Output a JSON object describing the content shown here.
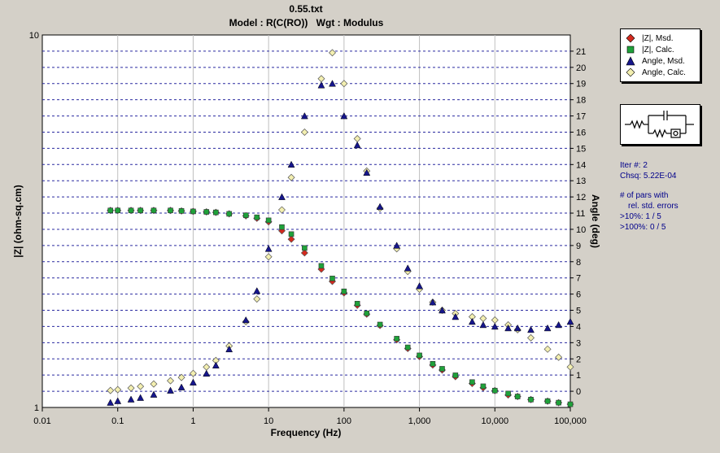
{
  "header": {
    "title": "0.55.txt",
    "model_label": "Model : R(C(RO))",
    "weight_label": "Wgt : Modulus"
  },
  "legend": [
    {
      "label": "|Z|, Msd.",
      "marker": "diamond",
      "color": "#d42a1e"
    },
    {
      "label": "|Z|, Calc.",
      "marker": "square",
      "color": "#1fa23a"
    },
    {
      "label": "Angle, Msd.",
      "marker": "triangle",
      "color": "#16168c"
    },
    {
      "label": "Angle, Calc.",
      "marker": "diamond",
      "color": "#f3efb0"
    }
  ],
  "circuit_icon": "R-C-parallel-R-O-circuit-icon",
  "fit_info": {
    "iter": "Iter #:  2",
    "chisq": "Chsq:  5.22E-04",
    "pars_header_1": "# of pars with",
    "pars_header_2": "rel. std. errors",
    "gt10": ">10%:      1 / 5",
    "gt100": ">100%:    0 / 5"
  },
  "chart_data": {
    "type": "scatter",
    "xlabel": "Frequency (Hz)",
    "ylabel_left": "|Z| (ohm-sq.cm)",
    "ylabel_right": "Angle (deg)",
    "x_scale": "log",
    "y_left_scale": "log",
    "xlim": [
      0.01,
      100000
    ],
    "ylim_left": [
      1,
      10
    ],
    "ylim_right": [
      -1,
      22
    ],
    "x_ticks": [
      "0.01",
      "0.1",
      "1",
      "10",
      "100",
      "1,000",
      "10,000",
      "100,000"
    ],
    "y_left_ticks": [
      "1",
      "10"
    ],
    "y_right_ticks": [
      "0",
      "1",
      "2",
      "3",
      "4",
      "5",
      "6",
      "7",
      "8",
      "9",
      "10",
      "11",
      "12",
      "13",
      "14",
      "15",
      "16",
      "17",
      "18",
      "19",
      "20",
      "21"
    ],
    "grid": true,
    "legend_position": "right",
    "series": [
      {
        "name": "|Z|, Msd.",
        "x": [
          0.08,
          0.1,
          0.15,
          0.2,
          0.3,
          0.5,
          0.7,
          1,
          1.5,
          2,
          3,
          5,
          7,
          10,
          15,
          20,
          30,
          50,
          70,
          100,
          150,
          200,
          300,
          500,
          700,
          1000,
          1500,
          2000,
          3000,
          5000,
          7000,
          10000,
          15000,
          20000,
          30000,
          50000,
          70000,
          100000
        ],
        "y": [
          3.38,
          3.38,
          3.38,
          3.38,
          3.38,
          3.38,
          3.37,
          3.36,
          3.35,
          3.34,
          3.31,
          3.27,
          3.22,
          3.15,
          2.98,
          2.83,
          2.6,
          2.35,
          2.18,
          2.03,
          1.88,
          1.78,
          1.66,
          1.52,
          1.44,
          1.37,
          1.3,
          1.26,
          1.21,
          1.16,
          1.13,
          1.11,
          1.08,
          1.07,
          1.05,
          1.04,
          1.03,
          1.02
        ]
      },
      {
        "name": "|Z|, Calc.",
        "x": [
          0.08,
          0.1,
          0.15,
          0.2,
          0.3,
          0.5,
          0.7,
          1,
          1.5,
          2,
          3,
          5,
          7,
          10,
          15,
          20,
          30,
          50,
          70,
          100,
          150,
          200,
          300,
          500,
          700,
          1000,
          1500,
          2000,
          3000,
          5000,
          7000,
          10000,
          15000,
          20000,
          30000,
          50000,
          70000,
          100000
        ],
        "y": [
          3.38,
          3.38,
          3.38,
          3.38,
          3.38,
          3.38,
          3.37,
          3.36,
          3.35,
          3.34,
          3.31,
          3.28,
          3.24,
          3.18,
          3.05,
          2.92,
          2.68,
          2.4,
          2.22,
          2.05,
          1.9,
          1.79,
          1.67,
          1.53,
          1.45,
          1.38,
          1.31,
          1.27,
          1.22,
          1.17,
          1.14,
          1.11,
          1.09,
          1.07,
          1.05,
          1.04,
          1.03,
          1.02
        ]
      },
      {
        "name": "Angle, Msd.",
        "x": [
          0.08,
          0.1,
          0.15,
          0.2,
          0.3,
          0.5,
          0.7,
          1,
          1.5,
          2,
          3,
          5,
          7,
          10,
          15,
          20,
          30,
          50,
          70,
          100,
          150,
          200,
          300,
          500,
          700,
          1000,
          1500,
          2000,
          3000,
          5000,
          7000,
          10000,
          15000,
          20000,
          30000,
          50000,
          70000,
          100000
        ],
        "y": [
          -0.7,
          -0.6,
          -0.5,
          -0.4,
          -0.2,
          0.05,
          0.25,
          0.55,
          1.1,
          1.6,
          2.6,
          4.4,
          6.2,
          8.8,
          12,
          14,
          17,
          18.9,
          19,
          17,
          15.2,
          13.5,
          11.4,
          9,
          7.6,
          6.5,
          5.5,
          5,
          4.6,
          4.3,
          4.1,
          4,
          3.9,
          3.9,
          3.8,
          3.9,
          4.1,
          4.3
        ]
      },
      {
        "name": "Angle, Calc.",
        "x": [
          0.08,
          0.1,
          0.15,
          0.2,
          0.3,
          0.5,
          0.7,
          1,
          1.5,
          2,
          3,
          5,
          7,
          10,
          15,
          20,
          30,
          50,
          70,
          100,
          150,
          200,
          300,
          500,
          700,
          1000,
          1500,
          2000,
          3000,
          5000,
          7000,
          10000,
          15000,
          20000,
          30000,
          50000,
          70000,
          100000
        ],
        "y": [
          0.05,
          0.1,
          0.2,
          0.3,
          0.45,
          0.65,
          0.85,
          1.1,
          1.5,
          1.9,
          2.8,
          4.3,
          5.7,
          8.3,
          11.2,
          13.2,
          16,
          19.3,
          20.9,
          19,
          15.6,
          13.6,
          11.3,
          8.8,
          7.4,
          6.3,
          5.5,
          5,
          4.8,
          4.6,
          4.5,
          4.4,
          4.1,
          3.8,
          3.3,
          2.6,
          2.1,
          1.5
        ]
      }
    ]
  }
}
